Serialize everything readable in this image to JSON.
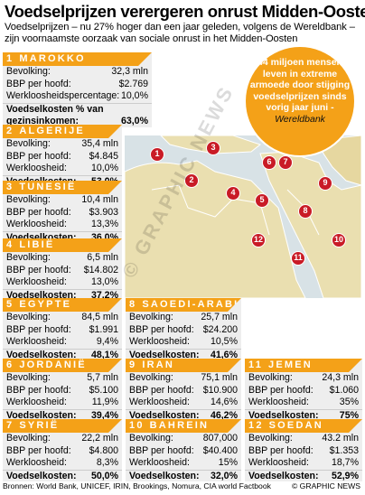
{
  "title": "Voedselprijzen verergeren onrust Midden-Oosten",
  "subtitle": "Voedselprijzen – nu 27% hoger dan een jaar geleden, volgens de Wereldbank – zijn voornaamste oorzaak van sociale onrust in het Midden-Oosten",
  "callout": {
    "text": "44 miljoen mensen leven in extreme armoede door stijging voedselprijzen sinds vorig jaar juni -",
    "source": "Wereldbank"
  },
  "countries": [
    {
      "num": "1",
      "name": "MAROKKO",
      "rows": [
        {
          "label": "Bevolking:",
          "value": "32,3 mln"
        },
        {
          "label": "BBP per hoofd:",
          "value": "$2.769"
        },
        {
          "label": "Werkloosheidspercentage:",
          "value": "10,0%"
        },
        {
          "label": "Voedselkosten % van gezinsinkomen:",
          "value": "63,0%"
        }
      ]
    },
    {
      "num": "2",
      "name": "ALGERIJE",
      "rows": [
        {
          "label": "Bevolking:",
          "value": "35,4 mln"
        },
        {
          "label": "BBP per hoofd:",
          "value": "$4.845"
        },
        {
          "label": "Werkloosheid:",
          "value": "10,0%"
        },
        {
          "label": "Voedselkosten:",
          "value": "53,0%"
        }
      ]
    },
    {
      "num": "3",
      "name": "TUNESIË",
      "rows": [
        {
          "label": "Bevolking:",
          "value": "10,4 mln"
        },
        {
          "label": "BBP per hoofd:",
          "value": "$3.903"
        },
        {
          "label": "Werkloosheid:",
          "value": "13,3%"
        },
        {
          "label": "Voedselkosten:",
          "value": "36,0%"
        }
      ]
    },
    {
      "num": "4",
      "name": "LIBIË",
      "rows": [
        {
          "label": "Bevolking:",
          "value": "6,5 mln"
        },
        {
          "label": "BBP per hoofd:",
          "value": "$14.802"
        },
        {
          "label": "Werkloosheid:",
          "value": "13,0%"
        },
        {
          "label": "Voedselkosten:",
          "value": "37,2%"
        }
      ]
    },
    {
      "num": "5",
      "name": "EGYPTE",
      "rows": [
        {
          "label": "Bevolking:",
          "value": "84,5 mln"
        },
        {
          "label": "BBP per hoofd:",
          "value": "$1.991"
        },
        {
          "label": "Werkloosheid:",
          "value": "9,4%"
        },
        {
          "label": "Voedselkosten:",
          "value": "48,1%"
        }
      ]
    },
    {
      "num": "6",
      "name": "JORDANIË",
      "rows": [
        {
          "label": "Bevolking:",
          "value": "5,7 mln"
        },
        {
          "label": "BBP per hoofd:",
          "value": "$5.100"
        },
        {
          "label": "Werkloosheid:",
          "value": "11,9%"
        },
        {
          "label": "Voedselkosten:",
          "value": "39,4%"
        }
      ]
    },
    {
      "num": "7",
      "name": "SYRIË",
      "rows": [
        {
          "label": "Bevolking:",
          "value": "22,2 mln"
        },
        {
          "label": "BBP per hoofd:",
          "value": "$4.800"
        },
        {
          "label": "Werkloosheid:",
          "value": "8,3%"
        },
        {
          "label": "Voedselkosten:",
          "value": "50,0%"
        }
      ]
    },
    {
      "num": "8",
      "name": "SAOEDI-ARABIË",
      "rows": [
        {
          "label": "Bevolking:",
          "value": "25,7 mln"
        },
        {
          "label": "BBP per hoofd:",
          "value": "$24.200"
        },
        {
          "label": "Werkloosheid:",
          "value": "10,5%"
        },
        {
          "label": "Voedselkosten:",
          "value": "41,6%"
        }
      ]
    },
    {
      "num": "9",
      "name": "IRAN",
      "rows": [
        {
          "label": "Bevolking:",
          "value": "75,1 mln"
        },
        {
          "label": "BBP per hoofd:",
          "value": "$10.900"
        },
        {
          "label": "Werkloosheid:",
          "value": "14,6%"
        },
        {
          "label": "Voedselkosten:",
          "value": "46,2%"
        }
      ]
    },
    {
      "num": "10",
      "name": "BAHREIN",
      "rows": [
        {
          "label": "Bevolking:",
          "value": "807,000"
        },
        {
          "label": "BBP per hoofd:",
          "value": "$40.400"
        },
        {
          "label": "Werkloosheid:",
          "value": "15%"
        },
        {
          "label": "Voedselkosten:",
          "value": "32,0%"
        }
      ]
    },
    {
      "num": "11",
      "name": "JEMEN",
      "rows": [
        {
          "label": "Bevolking:",
          "value": "24,3 mln"
        },
        {
          "label": "BBP per hoofd:",
          "value": "$1.060"
        },
        {
          "label": "Werkloosheid:",
          "value": "35%"
        },
        {
          "label": "Voedselkosten:",
          "value": "75%"
        }
      ]
    },
    {
      "num": "12",
      "name": "SOEDAN",
      "rows": [
        {
          "label": "Bevolking:",
          "value": "43.2 mln"
        },
        {
          "label": "BBP per hoofd:",
          "value": "$1.353"
        },
        {
          "label": "Werkloosheid:",
          "value": "18,7%"
        },
        {
          "label": "Voedselkosten:",
          "value": "52,9%"
        }
      ]
    }
  ],
  "markers": [
    "1",
    "2",
    "3",
    "4",
    "5",
    "6",
    "7",
    "8",
    "9",
    "10",
    "11",
    "12"
  ],
  "footer": {
    "sources": "Bronnen: World Bank, UNICEF, IRIN, Brookings, Nomura, CIA world Factbook",
    "credit": "© GRAPHIC NEWS"
  },
  "watermark": "© GRAPHIC NEWS",
  "colors": {
    "header": "#f4a118",
    "card": "#eeeeee",
    "marker": "#c91b26",
    "land": "#eadfb0",
    "sea": "#d8e2e6"
  }
}
